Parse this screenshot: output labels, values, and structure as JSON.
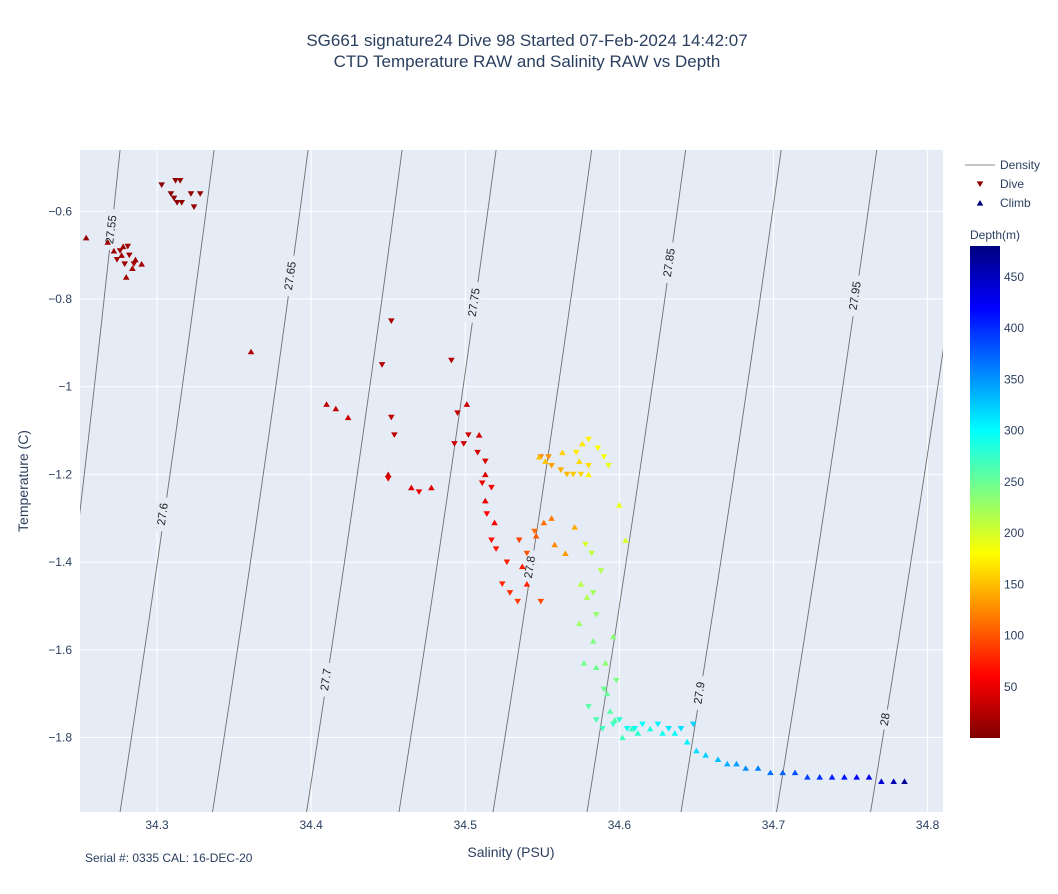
{
  "title_line1": "SG661 signature24 Dive 98 Started 07-Feb-2024 14:42:07",
  "title_line2": "CTD Temperature RAW and Salinity RAW vs Depth",
  "footer": "Serial #: 0335  CAL: 16-DEC-20",
  "chart_data": {
    "type": "scatter",
    "xlabel": "Salinity (PSU)",
    "ylabel": "Temperature (C)",
    "xlim": [
      34.25,
      34.81
    ],
    "ylim": [
      -1.97,
      -0.46
    ],
    "x_ticks": [
      "34.3",
      "34.4",
      "34.5",
      "34.6",
      "34.7",
      "34.8"
    ],
    "y_ticks": [
      "−0.6",
      "−0.8",
      "−1",
      "−1.2",
      "−1.4",
      "−1.6",
      "−1.8"
    ],
    "grid": true,
    "legend": {
      "placement": "right",
      "items": [
        {
          "name": "Density",
          "symbol": "line",
          "color": "#888888"
        },
        {
          "name": "Dive",
          "symbol": "triangle-down",
          "color": "#8b0000"
        },
        {
          "name": "Climb",
          "symbol": "triangle-up",
          "color": "#00007f"
        }
      ]
    },
    "colorbar": {
      "title": "Depth(m)",
      "range": [
        0,
        480
      ],
      "ticks": [
        "50",
        "100",
        "150",
        "200",
        "250",
        "300",
        "350",
        "400",
        "450"
      ],
      "colormap": [
        "#7f0000",
        "#ff0000",
        "#ff7f00",
        "#ffff00",
        "#7fff7f",
        "#00ffff",
        "#007fff",
        "#0000ff",
        "#00007f"
      ]
    },
    "density_contours": [
      {
        "label": "27.55",
        "top": [
          34.276,
          -0.46
        ],
        "bottom": [
          34.226,
          -1.97
        ]
      },
      {
        "label": "27.6",
        "top": [
          34.337,
          -0.46
        ],
        "bottom": [
          34.276,
          -1.97
        ]
      },
      {
        "label": "27.65",
        "top": [
          34.398,
          -0.46
        ],
        "bottom": [
          34.336,
          -1.97
        ]
      },
      {
        "label": "27.7",
        "top": [
          34.459,
          -0.46
        ],
        "bottom": [
          34.397,
          -1.97
        ]
      },
      {
        "label": "27.75",
        "top": [
          34.52,
          -0.46
        ],
        "bottom": [
          34.457,
          -1.97
        ]
      },
      {
        "label": "27.8",
        "top": [
          34.582,
          -0.46
        ],
        "bottom": [
          34.518,
          -1.97
        ]
      },
      {
        "label": "27.85",
        "top": [
          34.643,
          -0.46
        ],
        "bottom": [
          34.579,
          -1.97
        ]
      },
      {
        "label": "27.9",
        "top": [
          34.705,
          -0.46
        ],
        "bottom": [
          34.64,
          -1.97
        ]
      },
      {
        "label": "27.95",
        "top": [
          34.767,
          -0.46
        ],
        "bottom": [
          34.702,
          -1.97
        ]
      },
      {
        "label": "28",
        "top": [
          34.829,
          -0.46
        ],
        "bottom": [
          34.763,
          -1.97
        ]
      }
    ],
    "series": [
      {
        "name": "Dive",
        "marker": "triangle-down",
        "points": [
          [
            34.303,
            -0.54,
            5
          ],
          [
            34.309,
            -0.56,
            6
          ],
          [
            34.311,
            -0.57,
            7
          ],
          [
            34.313,
            -0.58,
            8
          ],
          [
            34.316,
            -0.58,
            8
          ],
          [
            34.312,
            -0.53,
            9
          ],
          [
            34.315,
            -0.53,
            9
          ],
          [
            34.322,
            -0.56,
            10
          ],
          [
            34.324,
            -0.59,
            10
          ],
          [
            34.328,
            -0.56,
            11
          ],
          [
            34.276,
            -0.69,
            14
          ],
          [
            34.279,
            -0.72,
            15
          ],
          [
            34.282,
            -0.7,
            16
          ],
          [
            34.285,
            -0.72,
            17
          ],
          [
            34.274,
            -0.71,
            15
          ],
          [
            34.281,
            -0.68,
            15
          ],
          [
            34.452,
            -0.85,
            20
          ],
          [
            34.446,
            -0.95,
            24
          ],
          [
            34.491,
            -0.94,
            26
          ],
          [
            34.452,
            -1.07,
            28
          ],
          [
            34.454,
            -1.11,
            30
          ],
          [
            34.495,
            -1.06,
            32
          ],
          [
            34.502,
            -1.11,
            35
          ],
          [
            34.499,
            -1.13,
            38
          ],
          [
            34.508,
            -1.15,
            40
          ],
          [
            34.513,
            -1.17,
            42
          ],
          [
            34.493,
            -1.13,
            36
          ],
          [
            34.45,
            -1.21,
            44
          ],
          [
            34.47,
            -1.24,
            48
          ],
          [
            34.511,
            -1.22,
            54
          ],
          [
            34.517,
            -1.23,
            58
          ],
          [
            34.514,
            -1.29,
            62
          ],
          [
            34.517,
            -1.35,
            66
          ],
          [
            34.52,
            -1.37,
            70
          ],
          [
            34.527,
            -1.4,
            74
          ],
          [
            34.524,
            -1.45,
            78
          ],
          [
            34.529,
            -1.47,
            82
          ],
          [
            34.534,
            -1.49,
            86
          ],
          [
            34.535,
            -1.35,
            90
          ],
          [
            34.549,
            -1.49,
            95
          ],
          [
            34.54,
            -1.38,
            100
          ],
          [
            34.545,
            -1.33,
            110
          ],
          [
            34.549,
            -1.16,
            120
          ],
          [
            34.554,
            -1.16,
            128
          ],
          [
            34.556,
            -1.18,
            135
          ],
          [
            34.562,
            -1.19,
            142
          ],
          [
            34.566,
            -1.2,
            148
          ],
          [
            34.57,
            -1.2,
            155
          ],
          [
            34.575,
            -1.2,
            160
          ],
          [
            34.58,
            -1.18,
            165
          ],
          [
            34.572,
            -1.15,
            170
          ],
          [
            34.58,
            -1.12,
            175
          ],
          [
            34.586,
            -1.14,
            180
          ],
          [
            34.59,
            -1.16,
            185
          ],
          [
            34.593,
            -1.18,
            190
          ],
          [
            34.578,
            -1.36,
            200
          ],
          [
            34.582,
            -1.38,
            210
          ],
          [
            34.588,
            -1.42,
            215
          ],
          [
            34.583,
            -1.47,
            222
          ],
          [
            34.585,
            -1.52,
            230
          ],
          [
            34.598,
            -1.67,
            240
          ],
          [
            34.59,
            -1.69,
            250
          ],
          [
            34.58,
            -1.73,
            258
          ],
          [
            34.585,
            -1.76,
            265
          ],
          [
            34.589,
            -1.78,
            270
          ],
          [
            34.596,
            -1.77,
            275
          ],
          [
            34.6,
            -1.76,
            280
          ],
          [
            34.605,
            -1.78,
            290
          ],
          [
            34.61,
            -1.78,
            295
          ],
          [
            34.615,
            -1.77,
            300
          ],
          [
            34.625,
            -1.77,
            305
          ],
          [
            34.632,
            -1.78,
            310
          ],
          [
            34.64,
            -1.78,
            315
          ],
          [
            34.648,
            -1.77,
            320
          ]
        ]
      },
      {
        "name": "Climb",
        "marker": "triangle-up",
        "points": [
          [
            34.254,
            -0.66,
            10
          ],
          [
            34.268,
            -0.67,
            13
          ],
          [
            34.272,
            -0.69,
            14
          ],
          [
            34.277,
            -0.7,
            15
          ],
          [
            34.286,
            -0.71,
            16
          ],
          [
            34.29,
            -0.72,
            17
          ],
          [
            34.28,
            -0.75,
            18
          ],
          [
            34.284,
            -0.73,
            16
          ],
          [
            34.278,
            -0.68,
            14
          ],
          [
            34.361,
            -0.92,
            22
          ],
          [
            34.41,
            -1.04,
            30
          ],
          [
            34.416,
            -1.05,
            32
          ],
          [
            34.424,
            -1.07,
            34
          ],
          [
            34.45,
            -1.2,
            40
          ],
          [
            34.465,
            -1.23,
            44
          ],
          [
            34.478,
            -1.23,
            46
          ],
          [
            34.501,
            -1.04,
            36
          ],
          [
            34.509,
            -1.11,
            40
          ],
          [
            34.513,
            -1.2,
            45
          ],
          [
            34.513,
            -1.26,
            50
          ],
          [
            34.519,
            -1.31,
            56
          ],
          [
            34.537,
            -1.41,
            72
          ],
          [
            34.54,
            -1.45,
            76
          ],
          [
            34.546,
            -1.34,
            102
          ],
          [
            34.551,
            -1.31,
            112
          ],
          [
            34.556,
            -1.3,
            118
          ],
          [
            34.558,
            -1.36,
            125
          ],
          [
            34.565,
            -1.38,
            132
          ],
          [
            34.571,
            -1.32,
            140
          ],
          [
            34.548,
            -1.16,
            150
          ],
          [
            34.552,
            -1.17,
            152
          ],
          [
            34.563,
            -1.15,
            158
          ],
          [
            34.574,
            -1.17,
            162
          ],
          [
            34.576,
            -1.13,
            168
          ],
          [
            34.58,
            -1.2,
            176
          ],
          [
            34.6,
            -1.27,
            190
          ],
          [
            34.604,
            -1.35,
            198
          ],
          [
            34.575,
            -1.45,
            212
          ],
          [
            34.579,
            -1.48,
            218
          ],
          [
            34.574,
            -1.54,
            226
          ],
          [
            34.591,
            -1.63,
            232
          ],
          [
            34.596,
            -1.57,
            236
          ],
          [
            34.583,
            -1.58,
            240
          ],
          [
            34.577,
            -1.63,
            244
          ],
          [
            34.585,
            -1.64,
            248
          ],
          [
            34.592,
            -1.7,
            252
          ],
          [
            34.594,
            -1.74,
            258
          ],
          [
            34.597,
            -1.76,
            262
          ],
          [
            34.602,
            -1.8,
            268
          ],
          [
            34.608,
            -1.78,
            272
          ],
          [
            34.612,
            -1.79,
            280
          ],
          [
            34.62,
            -1.78,
            286
          ],
          [
            34.628,
            -1.79,
            292
          ],
          [
            34.636,
            -1.79,
            298
          ],
          [
            34.644,
            -1.81,
            305
          ],
          [
            34.65,
            -1.83,
            315
          ],
          [
            34.656,
            -1.84,
            322
          ],
          [
            34.664,
            -1.85,
            330
          ],
          [
            34.67,
            -1.86,
            338
          ],
          [
            34.676,
            -1.86,
            345
          ],
          [
            34.682,
            -1.87,
            352
          ],
          [
            34.69,
            -1.87,
            360
          ],
          [
            34.698,
            -1.88,
            368
          ],
          [
            34.706,
            -1.88,
            375
          ],
          [
            34.714,
            -1.88,
            382
          ],
          [
            34.722,
            -1.89,
            390
          ],
          [
            34.73,
            -1.89,
            398
          ],
          [
            34.738,
            -1.89,
            405
          ],
          [
            34.746,
            -1.89,
            412
          ],
          [
            34.754,
            -1.89,
            420
          ],
          [
            34.762,
            -1.89,
            430
          ],
          [
            34.77,
            -1.9,
            440
          ],
          [
            34.778,
            -1.9,
            455
          ],
          [
            34.785,
            -1.9,
            470
          ]
        ]
      }
    ]
  }
}
